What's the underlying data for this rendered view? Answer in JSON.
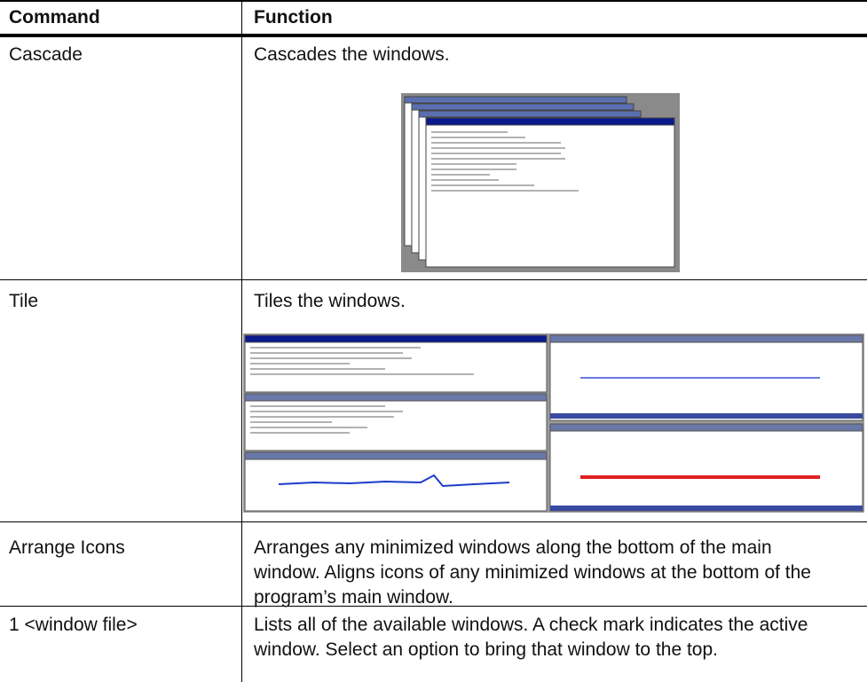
{
  "table": {
    "header": [
      "Command",
      "Function"
    ],
    "rows": [
      [
        "Cascade",
        "Cascades the windows."
      ],
      [
        "Tile",
        "Tiles the windows."
      ],
      [
        "Arrange Icons",
        "Arranges any minimized windows along the bottom of the main window. Aligns icons of any minimized windows at the bottom of the program’s main window."
      ],
      [
        "1 <window file>",
        "Lists all of the available windows. A check mark indicates the active window. Select an option to bring that window to the top."
      ]
    ]
  }
}
